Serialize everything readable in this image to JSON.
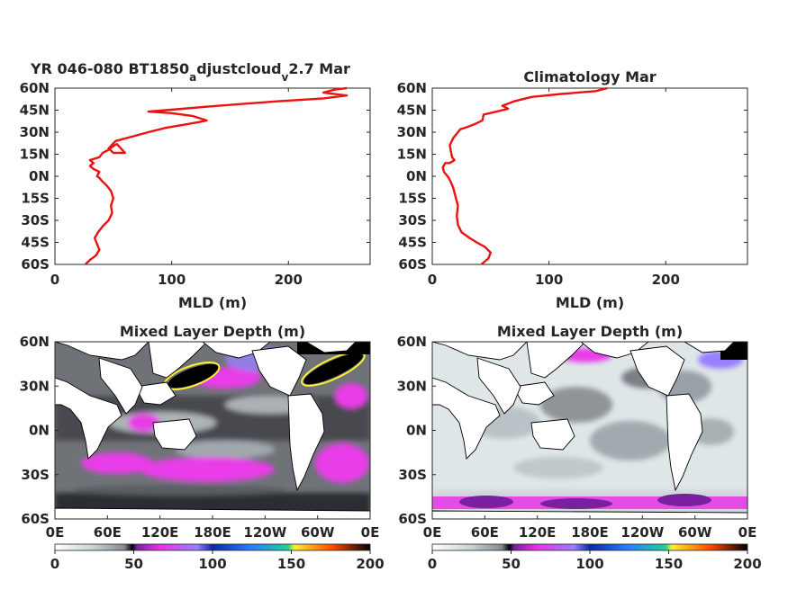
{
  "chart_data": [
    {
      "type": "line",
      "title_main": "YR 046-080 BT1850",
      "title_sub1": "a",
      "title_mid": "djustcloud",
      "title_sub2": "v",
      "title_end": "2.7 Mar",
      "xlabel": "MLD (m)",
      "xlim": [
        0,
        270
      ],
      "ylim": [
        -60,
        60
      ],
      "xticks": [
        "0",
        "100",
        "200"
      ],
      "yticks": [
        "60N",
        "45N",
        "30N",
        "15N",
        "0N",
        "15S",
        "30S",
        "45S",
        "60S"
      ],
      "series": [
        {
          "x": [
            26,
            30,
            35,
            38,
            36,
            34,
            37,
            41,
            46,
            49,
            48,
            50,
            48,
            44,
            40,
            38,
            36,
            38,
            33,
            30,
            33,
            30,
            38,
            41,
            46,
            49,
            53,
            60,
            50,
            46,
            52,
            66,
            80,
            95,
            110,
            124,
            130,
            118,
            100,
            80,
            95,
            140,
            190,
            230,
            250,
            230,
            240,
            250
          ],
          "y": [
            -60,
            -57,
            -54,
            -50,
            -46,
            -42,
            -38,
            -34,
            -30,
            -25,
            -20,
            -15,
            -10,
            -6,
            -3,
            -1,
            0,
            3,
            5,
            7,
            9,
            11,
            13,
            16,
            18,
            20,
            22,
            16,
            16,
            19,
            24,
            27,
            30,
            33,
            35,
            37,
            38,
            41,
            43,
            44,
            45,
            48,
            51,
            53,
            55,
            57,
            59,
            60
          ]
        }
      ]
    },
    {
      "type": "line",
      "title": "Climatology Mar",
      "xlabel": "MLD (m)",
      "xlim": [
        0,
        270
      ],
      "ylim": [
        -60,
        60
      ],
      "xticks": [
        "0",
        "100",
        "200"
      ],
      "yticks": [
        "60N",
        "45N",
        "30N",
        "15N",
        "0N",
        "15S",
        "30S",
        "45S",
        "60S"
      ],
      "series": [
        {
          "x": [
            42,
            48,
            50,
            45,
            38,
            32,
            25,
            22,
            21,
            22,
            20,
            18,
            16,
            14,
            13,
            12,
            10,
            9,
            11,
            15,
            19,
            17,
            16,
            15,
            18,
            22,
            24,
            28,
            35,
            43,
            44,
            55,
            60,
            65,
            60,
            70,
            85,
            110,
            140,
            150
          ],
          "y": [
            -60,
            -56,
            -52,
            -48,
            -45,
            -42,
            -38,
            -33,
            -27,
            -20,
            -14,
            -8,
            -4,
            -1,
            0,
            1,
            3,
            6,
            9,
            9,
            11,
            13,
            17,
            21,
            26,
            30,
            32,
            33,
            35,
            38,
            42,
            44,
            45,
            46,
            48,
            51,
            54,
            56,
            58,
            60
          ]
        }
      ]
    },
    {
      "type": "heatmap",
      "title": "Mixed Layer Depth (m)",
      "xticks": [
        "0E",
        "60E",
        "120E",
        "180E",
        "120W",
        "60W",
        "0E"
      ],
      "yticks": [
        "60N",
        "30N",
        "0N",
        "30S",
        "60S"
      ],
      "colorbar_ticks": [
        "0",
        "50",
        "100",
        "150",
        "200"
      ],
      "colorbar_range": [
        0,
        200
      ]
    },
    {
      "type": "heatmap",
      "title": "Mixed Layer Depth (m)",
      "xticks": [
        "0E",
        "60E",
        "120E",
        "180E",
        "120W",
        "60W",
        "0E"
      ],
      "yticks": [
        "60N",
        "30N",
        "0N",
        "30S",
        "60S"
      ],
      "colorbar_ticks": [
        "0",
        "50",
        "100",
        "150",
        "200"
      ],
      "colorbar_range": [
        0,
        200
      ]
    }
  ]
}
